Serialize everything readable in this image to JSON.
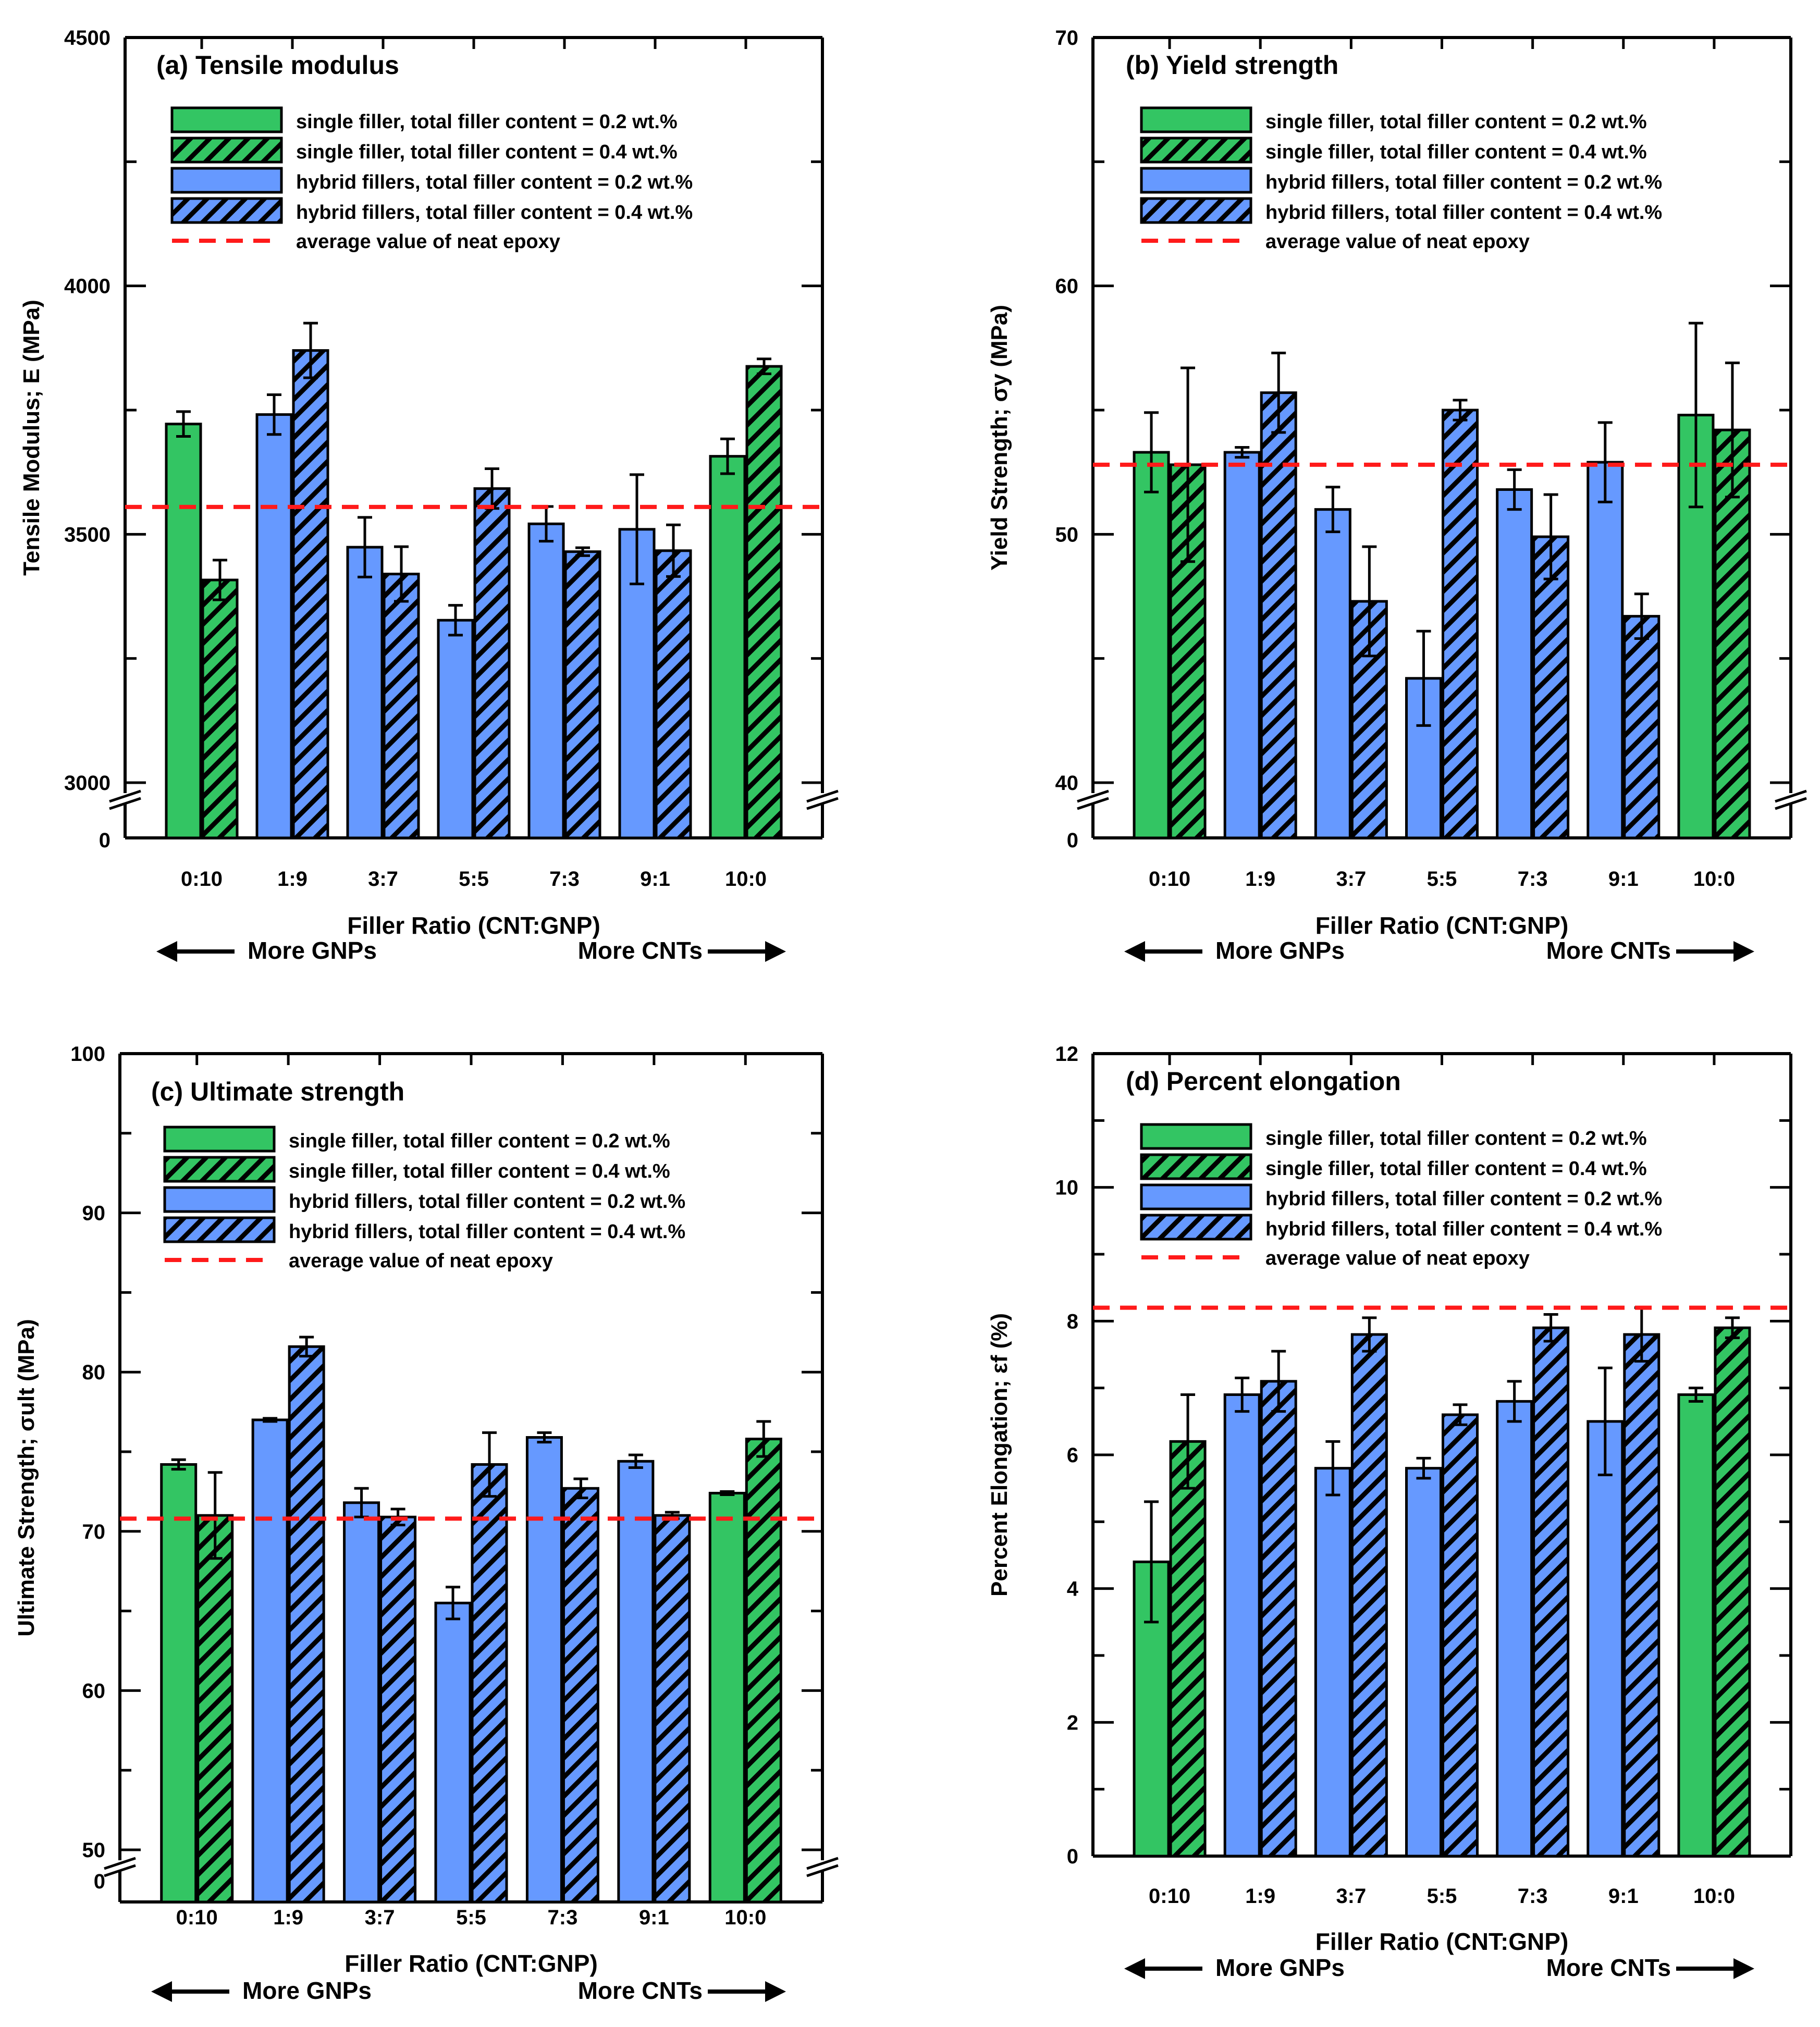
{
  "colors": {
    "single": "#33c563",
    "hybrid": "#6699ff",
    "neat": "#ff1a1a",
    "stroke": "#000000"
  },
  "legend": {
    "single_02": "single filler, total filler content = 0.2 wt.%",
    "single_04": "single filler, total filler content = 0.4 wt.%",
    "hybrid_02": "hybrid fillers, total filler content = 0.2 wt.%",
    "hybrid_04": "hybrid fillers, total filler content = 0.4 wt.%",
    "neat": "average value of neat epoxy"
  },
  "direction": {
    "left": "More GNPs",
    "right": "More CNTs"
  },
  "chart_data": [
    {
      "type": "bar",
      "title": "(a) Tensile modulus",
      "xlabel": "Filler Ratio (CNT:GNP)",
      "ylabel": "Tensile Modulus; E (MPa)",
      "ylim": [
        3000,
        4500
      ],
      "yticks": [
        3000,
        3500,
        4000,
        4500
      ],
      "zero_label": "0",
      "axis_break": true,
      "categories": [
        "0:10",
        "1:9",
        "3:7",
        "5:5",
        "7:3",
        "9:1",
        "10:0"
      ],
      "bar_type": [
        "single",
        "hybrid",
        "hybrid",
        "hybrid",
        "hybrid",
        "hybrid",
        "single"
      ],
      "neat_epoxy": 3555,
      "series": [
        {
          "name": "total filler content = 0.2 wt.%",
          "values": [
            3722,
            3741,
            3474,
            3327,
            3521,
            3510,
            3657
          ],
          "errors": [
            25,
            40,
            60,
            30,
            35,
            110,
            35
          ]
        },
        {
          "name": "total filler content = 0.4 wt.%",
          "values": [
            3408,
            3870,
            3420,
            3592,
            3465,
            3467,
            3838
          ],
          "errors": [
            40,
            55,
            55,
            40,
            8,
            52,
            15
          ]
        }
      ]
    },
    {
      "type": "bar",
      "title": "(b) Yield strength",
      "xlabel": "Filler Ratio (CNT:GNP)",
      "ylabel": "Yield Strength; σy (MPa)",
      "ylim": [
        40,
        70
      ],
      "yticks": [
        40,
        50,
        60,
        70
      ],
      "zero_label": "0",
      "axis_break": true,
      "categories": [
        "0:10",
        "1:9",
        "3:7",
        "5:5",
        "7:3",
        "9:1",
        "10:0"
      ],
      "bar_type": [
        "single",
        "hybrid",
        "hybrid",
        "hybrid",
        "hybrid",
        "hybrid",
        "single"
      ],
      "neat_epoxy": 52.8,
      "series": [
        {
          "name": "total filler content = 0.2 wt.%",
          "values": [
            53.3,
            53.3,
            51.0,
            44.2,
            51.8,
            52.9,
            54.8
          ],
          "errors": [
            1.6,
            0.2,
            0.9,
            1.9,
            0.8,
            1.6,
            3.7
          ]
        },
        {
          "name": "total filler content = 0.4 wt.%",
          "values": [
            52.8,
            55.7,
            47.3,
            55.0,
            49.9,
            46.7,
            54.2
          ],
          "errors": [
            3.9,
            1.6,
            2.2,
            0.4,
            1.7,
            0.9,
            2.7
          ]
        }
      ]
    },
    {
      "type": "bar",
      "title": "(c) Ultimate strength",
      "xlabel": "Filler Ratio (CNT:GNP)",
      "ylabel": "Ultimate Strength; σult (MPa)",
      "ylim": [
        50,
        100
      ],
      "yticks": [
        50,
        60,
        70,
        80,
        90,
        100
      ],
      "zero_label": "0",
      "axis_break": true,
      "categories": [
        "0:10",
        "1:9",
        "3:7",
        "5:5",
        "7:3",
        "9:1",
        "10:0"
      ],
      "bar_type": [
        "single",
        "hybrid",
        "hybrid",
        "hybrid",
        "hybrid",
        "hybrid",
        "single"
      ],
      "neat_epoxy": 70.8,
      "series": [
        {
          "name": "total filler content = 0.2 wt.%",
          "values": [
            74.2,
            77.0,
            71.8,
            65.5,
            75.9,
            74.4,
            72.4
          ],
          "errors": [
            0.3,
            0.1,
            0.9,
            1.0,
            0.3,
            0.4,
            0.1
          ]
        },
        {
          "name": "total filler content = 0.4 wt.%",
          "values": [
            71.0,
            81.6,
            70.9,
            74.2,
            72.7,
            71.0,
            75.8
          ],
          "errors": [
            2.7,
            0.6,
            0.5,
            2.0,
            0.6,
            0.2,
            1.1
          ]
        }
      ]
    },
    {
      "type": "bar",
      "title": "(d) Percent elongation",
      "xlabel": "Filler Ratio (CNT:GNP)",
      "ylabel": "Percent Elongation; εf (%)",
      "ylim": [
        0,
        12
      ],
      "yticks": [
        0,
        2,
        4,
        6,
        8,
        10,
        12
      ],
      "zero_label": "",
      "axis_break": false,
      "categories": [
        "0:10",
        "1:9",
        "3:7",
        "5:5",
        "7:3",
        "9:1",
        "10:0"
      ],
      "bar_type": [
        "single",
        "hybrid",
        "hybrid",
        "hybrid",
        "hybrid",
        "hybrid",
        "single"
      ],
      "neat_epoxy": 8.2,
      "series": [
        {
          "name": "total filler content = 0.2 wt.%",
          "values": [
            4.4,
            6.9,
            5.8,
            5.8,
            6.8,
            6.5,
            6.9
          ],
          "errors": [
            0.9,
            0.25,
            0.4,
            0.15,
            0.3,
            0.8,
            0.1
          ]
        },
        {
          "name": "total filler content = 0.4 wt.%",
          "values": [
            6.2,
            7.1,
            7.8,
            6.6,
            7.9,
            7.8,
            7.9
          ],
          "errors": [
            0.7,
            0.45,
            0.25,
            0.15,
            0.2,
            0.4,
            0.15
          ]
        }
      ]
    }
  ]
}
